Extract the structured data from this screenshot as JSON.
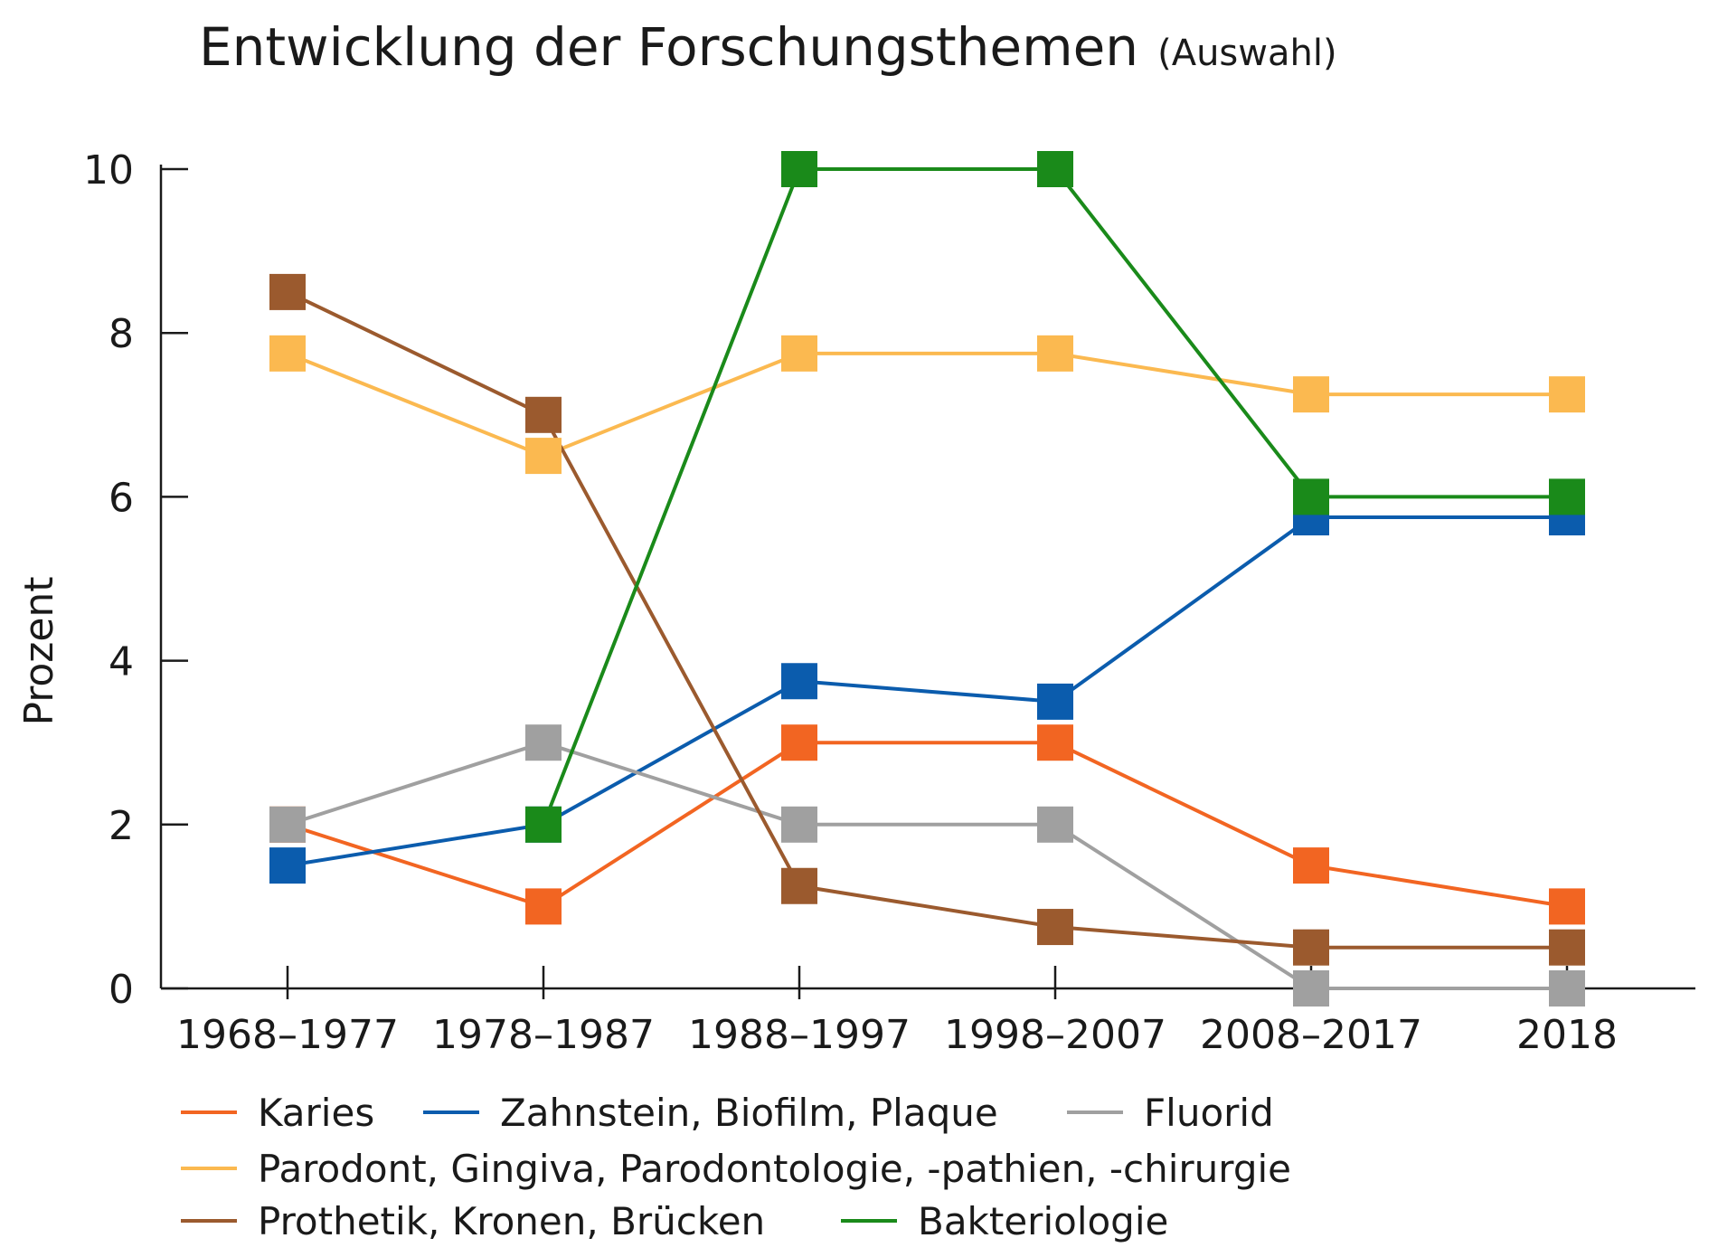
{
  "chart_data": {
    "type": "line",
    "title": "Entwicklung der Forschungsthemen",
    "subtitle": "(Auswahl)",
    "xlabel": "",
    "ylabel": "Prozent",
    "ylim": [
      0,
      10
    ],
    "yticks": [
      "0",
      "2",
      "4",
      "6",
      "8",
      "10"
    ],
    "categories": [
      "1968–1977",
      "1978–1987",
      "1988–1997",
      "1998–2007",
      "2008–2017",
      "2018"
    ],
    "grid": false,
    "legend_position": "bottom",
    "series": [
      {
        "name": "Karies",
        "color": "#f26522",
        "values": [
          2,
          1,
          3,
          3,
          1.5,
          1
        ]
      },
      {
        "name": "Zahnstein, Biofilm, Plaque",
        "color": "#0b5cad",
        "values": [
          1.5,
          2,
          3.75,
          3.5,
          5.75,
          5.75
        ]
      },
      {
        "name": "Fluorid",
        "color": "#a0a0a0",
        "values": [
          2,
          3,
          2,
          2,
          0,
          0
        ]
      },
      {
        "name": "Parodont, Gingiva, Parodontologie, -pathien, -chirurgie",
        "color": "#fbb950",
        "values": [
          7.75,
          6.5,
          7.75,
          7.75,
          7.25,
          7.25
        ]
      },
      {
        "name": "Prothetik, Kronen, Brücken",
        "color": "#9b5a2e",
        "values": [
          8.5,
          7,
          1.25,
          0.75,
          0.5,
          0.5
        ]
      },
      {
        "name": "Bakteriologie",
        "color": "#1a8a1a",
        "values": [
          null,
          2,
          10,
          10,
          6,
          6
        ]
      }
    ]
  }
}
